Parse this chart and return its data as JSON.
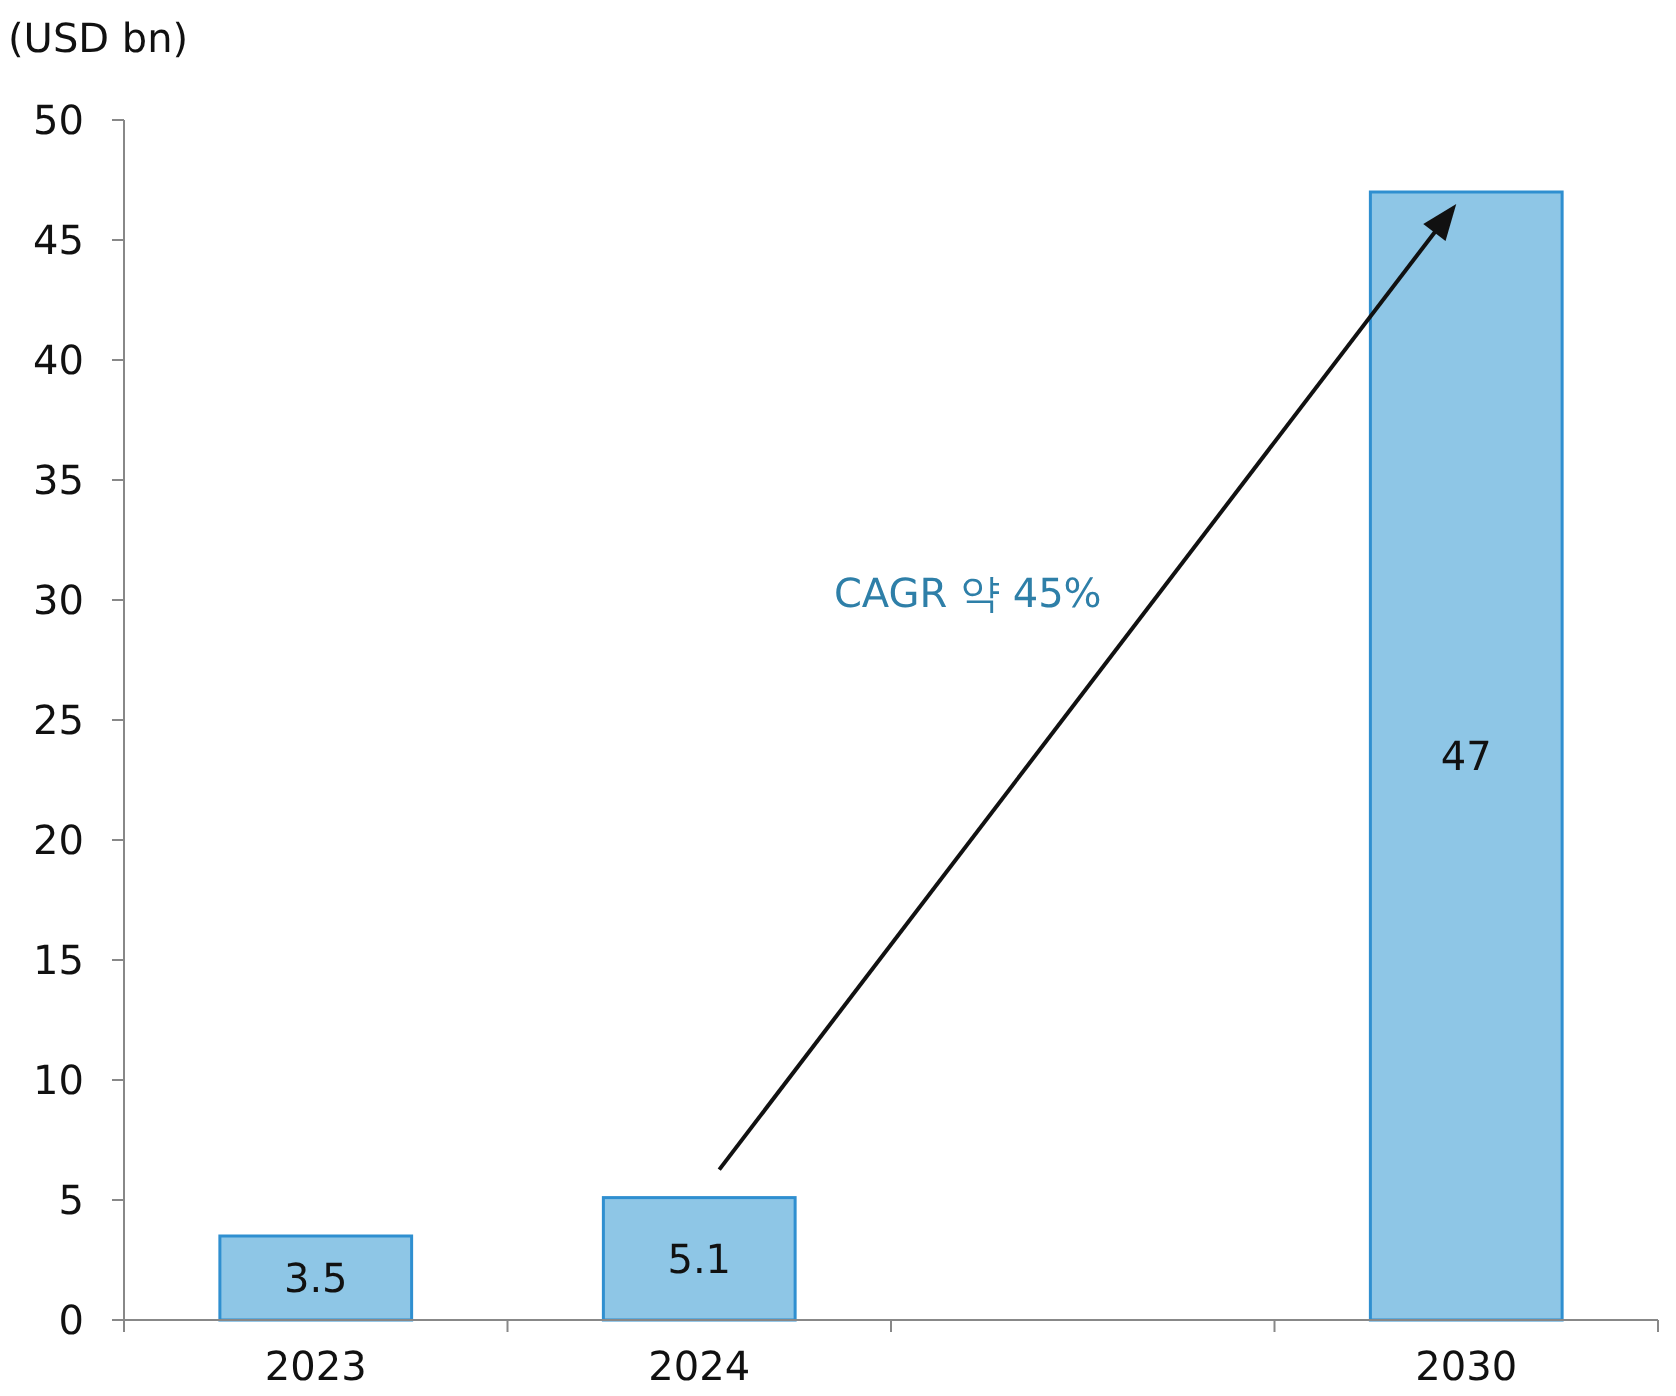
{
  "chart_data": {
    "type": "bar",
    "ylabel": "(USD bn)",
    "categories": [
      "2023",
      "2024",
      null,
      "2030"
    ],
    "values": [
      3.5,
      5.1,
      null,
      47
    ],
    "color": "#8ec6e6",
    "ylim": [
      0,
      50
    ],
    "yticks": [
      0,
      5,
      10,
      15,
      20,
      25,
      30,
      35,
      40,
      45,
      50
    ],
    "grid": false,
    "data_labels": true,
    "annotations": [
      "CAGR 약 45%"
    ]
  }
}
